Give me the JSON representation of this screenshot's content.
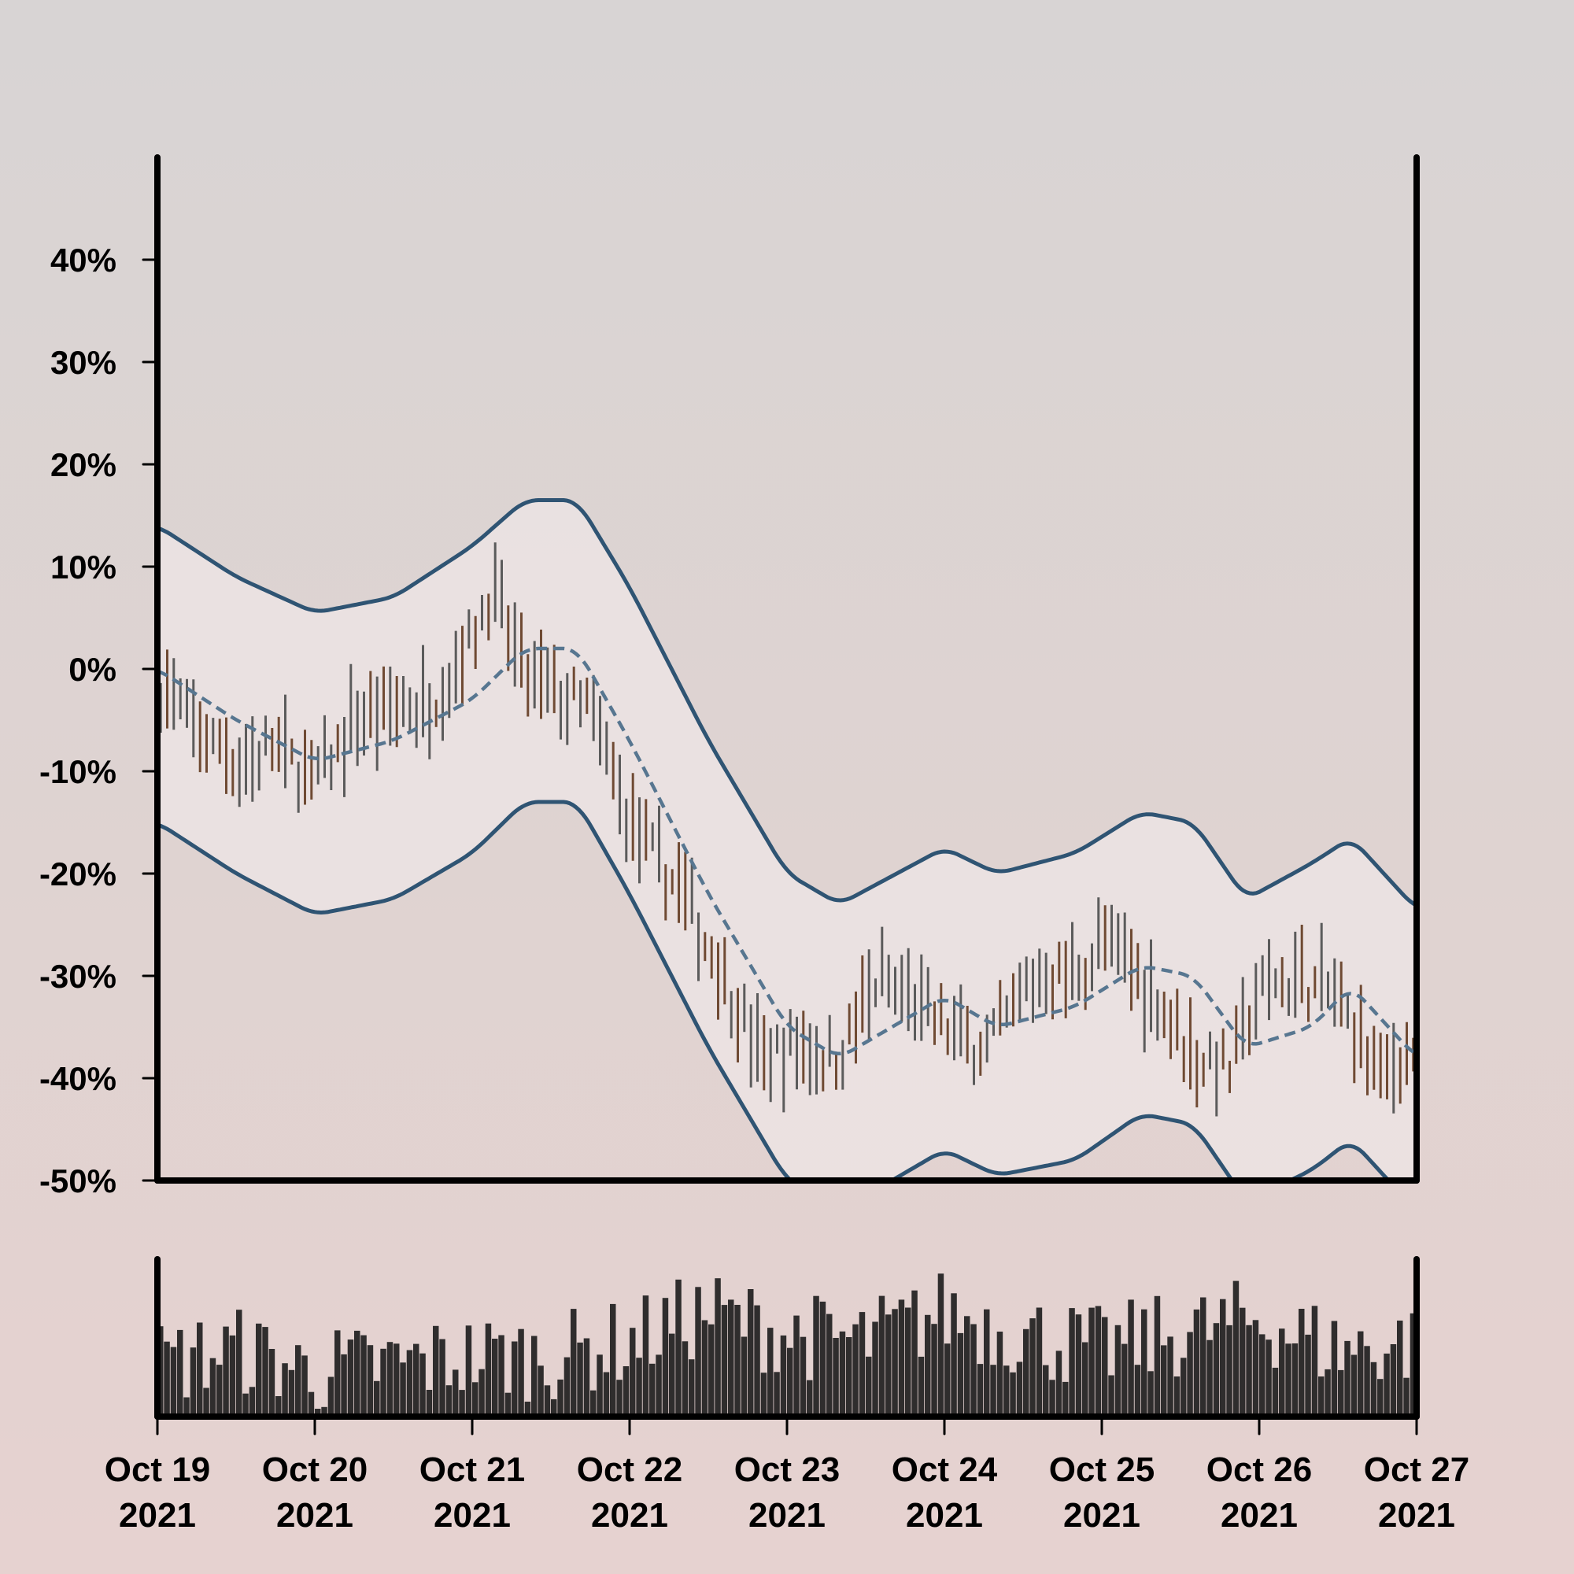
{
  "chart_data": {
    "type": "ohlc",
    "title": "",
    "xlabel": "",
    "ylabel": "",
    "y_unit": "%",
    "ylim": [
      -50,
      50
    ],
    "y_ticks": [
      40,
      30,
      20,
      10,
      0,
      -10,
      -20,
      -30,
      -40,
      -50
    ],
    "y_tick_labels": [
      "40%",
      "30%",
      "20%",
      "10%",
      "0%",
      "-10%",
      "-20%",
      "-30%",
      "-40%",
      "-50%"
    ],
    "x_range": [
      "2021-10-19",
      "2021-10-27"
    ],
    "x_ticks": [
      {
        "date": "2021-10-19",
        "line1": "Oct 19",
        "line2": "2021"
      },
      {
        "date": "2021-10-20",
        "line1": "Oct 20",
        "line2": "2021"
      },
      {
        "date": "2021-10-21",
        "line1": "Oct 21",
        "line2": "2021"
      },
      {
        "date": "2021-10-22",
        "line1": "Oct 22",
        "line2": "2021"
      },
      {
        "date": "2021-10-23",
        "line1": "Oct 23",
        "line2": "2021"
      },
      {
        "date": "2021-10-24",
        "line1": "Oct 24",
        "line2": "2021"
      },
      {
        "date": "2021-10-25",
        "line1": "Oct 25",
        "line2": "2021"
      },
      {
        "date": "2021-10-26",
        "line1": "Oct 26",
        "line2": "2021"
      },
      {
        "date": "2021-10-27",
        "line1": "Oct 27",
        "line2": "2021"
      }
    ],
    "grid": false,
    "legend": "none",
    "bars_per_day": 24,
    "ohlc_close_path": [
      {
        "date": "2021-10-19 00:00",
        "value": -1
      },
      {
        "date": "2021-10-19 06:00",
        "value": -6
      },
      {
        "date": "2021-10-19 12:00",
        "value": -9
      },
      {
        "date": "2021-10-19 18:00",
        "value": -8
      },
      {
        "date": "2021-10-20 00:00",
        "value": -11
      },
      {
        "date": "2021-10-20 06:00",
        "value": -5
      },
      {
        "date": "2021-10-20 12:00",
        "value": -4
      },
      {
        "date": "2021-10-20 18:00",
        "value": -3
      },
      {
        "date": "2021-10-21 00:00",
        "value": 3
      },
      {
        "date": "2021-10-21 03:00",
        "value": 8
      },
      {
        "date": "2021-10-21 08:00",
        "value": -1
      },
      {
        "date": "2021-10-21 14:00",
        "value": -3
      },
      {
        "date": "2021-10-21 18:00",
        "value": -4
      },
      {
        "date": "2021-10-22 00:00",
        "value": -15
      },
      {
        "date": "2021-10-22 08:00",
        "value": -22
      },
      {
        "date": "2021-10-22 14:00",
        "value": -30
      },
      {
        "date": "2021-10-22 20:00",
        "value": -38
      },
      {
        "date": "2021-10-23 00:00",
        "value": -37
      },
      {
        "date": "2021-10-23 08:00",
        "value": -38
      },
      {
        "date": "2021-10-23 14:00",
        "value": -30
      },
      {
        "date": "2021-10-23 20:00",
        "value": -33
      },
      {
        "date": "2021-10-24 00:00",
        "value": -35
      },
      {
        "date": "2021-10-24 06:00",
        "value": -37
      },
      {
        "date": "2021-10-24 14:00",
        "value": -30
      },
      {
        "date": "2021-10-24 22:00",
        "value": -29
      },
      {
        "date": "2021-10-25 00:00",
        "value": -26
      },
      {
        "date": "2021-10-25 08:00",
        "value": -32
      },
      {
        "date": "2021-10-25 14:00",
        "value": -38
      },
      {
        "date": "2021-10-25 20:00",
        "value": -39
      },
      {
        "date": "2021-10-26 00:00",
        "value": -31
      },
      {
        "date": "2021-10-26 06:00",
        "value": -30
      },
      {
        "date": "2021-10-26 12:00",
        "value": -32
      },
      {
        "date": "2021-10-26 18:00",
        "value": -40
      },
      {
        "date": "2021-10-27 00:00",
        "value": -37
      }
    ],
    "moving_average": [
      {
        "date": "2021-10-19 00:00",
        "value": 0
      },
      {
        "date": "2021-10-19 12:00",
        "value": -5
      },
      {
        "date": "2021-10-20 00:00",
        "value": -9
      },
      {
        "date": "2021-10-20 12:00",
        "value": -7
      },
      {
        "date": "2021-10-21 00:00",
        "value": -3
      },
      {
        "date": "2021-10-21 08:00",
        "value": 2
      },
      {
        "date": "2021-10-21 16:00",
        "value": 2
      },
      {
        "date": "2021-10-22 00:00",
        "value": -7
      },
      {
        "date": "2021-10-22 12:00",
        "value": -22
      },
      {
        "date": "2021-10-23 00:00",
        "value": -35
      },
      {
        "date": "2021-10-23 08:00",
        "value": -38
      },
      {
        "date": "2021-10-24 00:00",
        "value": -32
      },
      {
        "date": "2021-10-24 08:00",
        "value": -35
      },
      {
        "date": "2021-10-24 20:00",
        "value": -33
      },
      {
        "date": "2021-10-25 06:00",
        "value": -29
      },
      {
        "date": "2021-10-25 14:00",
        "value": -30
      },
      {
        "date": "2021-10-25 22:00",
        "value": -37
      },
      {
        "date": "2021-10-26 08:00",
        "value": -35
      },
      {
        "date": "2021-10-26 14:00",
        "value": -31
      },
      {
        "date": "2021-10-27 00:00",
        "value": -38
      }
    ],
    "upper_band": [
      {
        "date": "2021-10-19 00:00",
        "value": 14
      },
      {
        "date": "2021-10-19 12:00",
        "value": 9
      },
      {
        "date": "2021-10-20 00:00",
        "value": 5.5
      },
      {
        "date": "2021-10-20 12:00",
        "value": 7
      },
      {
        "date": "2021-10-21 00:00",
        "value": 12
      },
      {
        "date": "2021-10-21 08:00",
        "value": 16.5
      },
      {
        "date": "2021-10-21 16:00",
        "value": 16.5
      },
      {
        "date": "2021-10-22 00:00",
        "value": 8
      },
      {
        "date": "2021-10-22 12:00",
        "value": -7
      },
      {
        "date": "2021-10-23 00:00",
        "value": -20
      },
      {
        "date": "2021-10-23 08:00",
        "value": -23
      },
      {
        "date": "2021-10-24 00:00",
        "value": -17.5
      },
      {
        "date": "2021-10-24 08:00",
        "value": -20
      },
      {
        "date": "2021-10-24 20:00",
        "value": -18
      },
      {
        "date": "2021-10-25 06:00",
        "value": -14
      },
      {
        "date": "2021-10-25 14:00",
        "value": -15
      },
      {
        "date": "2021-10-25 22:00",
        "value": -22.5
      },
      {
        "date": "2021-10-26 08:00",
        "value": -19
      },
      {
        "date": "2021-10-26 14:00",
        "value": -16.5
      },
      {
        "date": "2021-10-27 00:00",
        "value": -23.5
      }
    ],
    "lower_band": [
      {
        "date": "2021-10-19 00:00",
        "value": -15
      },
      {
        "date": "2021-10-19 12:00",
        "value": -20
      },
      {
        "date": "2021-10-20 00:00",
        "value": -24
      },
      {
        "date": "2021-10-20 12:00",
        "value": -22.5
      },
      {
        "date": "2021-10-21 00:00",
        "value": -18
      },
      {
        "date": "2021-10-21 08:00",
        "value": -13
      },
      {
        "date": "2021-10-21 16:00",
        "value": -13
      },
      {
        "date": "2021-10-22 00:00",
        "value": -22
      },
      {
        "date": "2021-10-22 12:00",
        "value": -37
      },
      {
        "date": "2021-10-23 00:00",
        "value": -50
      },
      {
        "date": "2021-10-23 08:00",
        "value": -53
      },
      {
        "date": "2021-10-24 00:00",
        "value": -47
      },
      {
        "date": "2021-10-24 08:00",
        "value": -49.5
      },
      {
        "date": "2021-10-24 20:00",
        "value": -48
      },
      {
        "date": "2021-10-25 06:00",
        "value": -43.5
      },
      {
        "date": "2021-10-25 14:00",
        "value": -44.5
      },
      {
        "date": "2021-10-25 22:00",
        "value": -52
      },
      {
        "date": "2021-10-26 08:00",
        "value": -49
      },
      {
        "date": "2021-10-26 14:00",
        "value": -46
      },
      {
        "date": "2021-10-27 00:00",
        "value": -53
      }
    ],
    "volume_profile": [
      {
        "date": "2021-10-19 00:00",
        "value": 0.35
      },
      {
        "date": "2021-10-19 12:00",
        "value": 0.45
      },
      {
        "date": "2021-10-20 00:00",
        "value": 0.3
      },
      {
        "date": "2021-10-20 12:00",
        "value": 0.35
      },
      {
        "date": "2021-10-21 00:00",
        "value": 0.4
      },
      {
        "date": "2021-10-21 12:00",
        "value": 0.4
      },
      {
        "date": "2021-10-22 00:00",
        "value": 0.5
      },
      {
        "date": "2021-10-22 12:00",
        "value": 0.7
      },
      {
        "date": "2021-10-23 00:00",
        "value": 0.55
      },
      {
        "date": "2021-10-23 12:00",
        "value": 0.5
      },
      {
        "date": "2021-10-24 00:00",
        "value": 0.7
      },
      {
        "date": "2021-10-24 12:00",
        "value": 0.55
      },
      {
        "date": "2021-10-25 00:00",
        "value": 0.45
      },
      {
        "date": "2021-10-25 12:00",
        "value": 0.55
      },
      {
        "date": "2021-10-26 00:00",
        "value": 0.65
      },
      {
        "date": "2021-10-26 12:00",
        "value": 0.45
      },
      {
        "date": "2021-10-27 00:00",
        "value": 0.5
      }
    ],
    "colors": {
      "bar_up": "#5b5b5b",
      "bar_down": "#6f4a33",
      "bands": "#2f5473",
      "moving_average": "#577690",
      "band_fill": "#ede6e6",
      "volume": "#2f2d2d",
      "axis": "#000000",
      "background_top": "#d8d4d4",
      "background_bottom": "#e6d2d0"
    }
  }
}
